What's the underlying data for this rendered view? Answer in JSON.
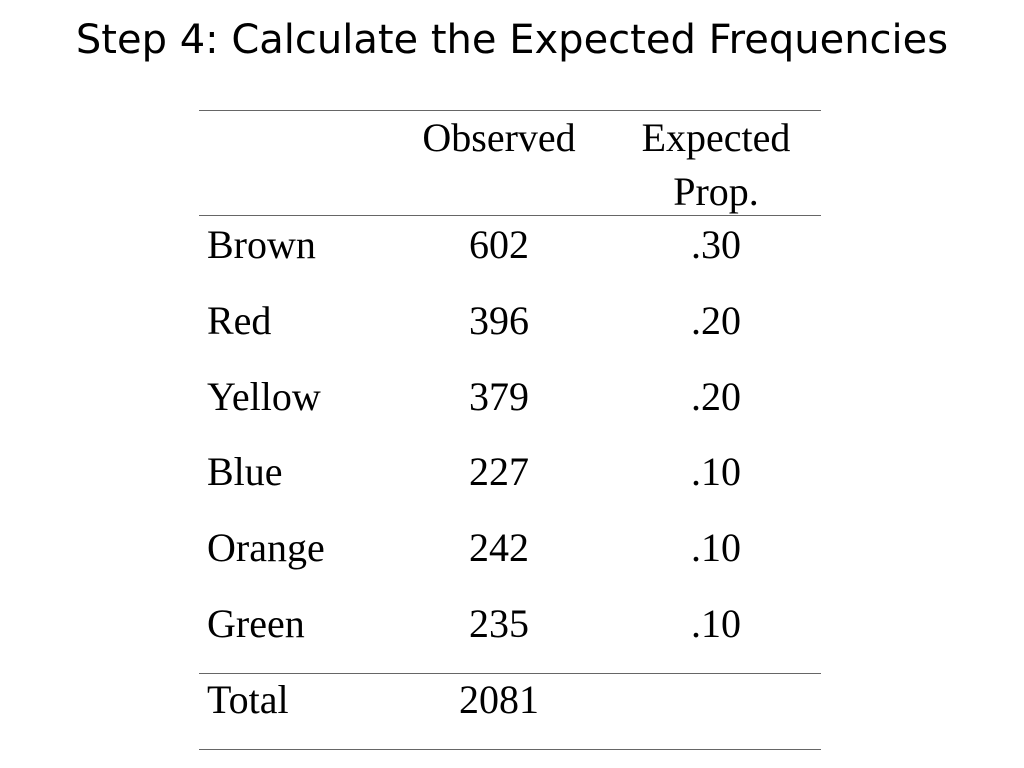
{
  "title": "Step 4: Calculate the Expected Frequencies",
  "table": {
    "header": [
      "Observed",
      "Expected Prop."
    ],
    "rows": [
      [
        "Brown",
        "602",
        ".30"
      ],
      [
        "Red",
        "396",
        ".20"
      ],
      [
        "Yellow",
        "379",
        ".20"
      ],
      [
        "Blue",
        "227",
        ".10"
      ],
      [
        "Orange",
        "242",
        ".10"
      ],
      [
        "Green",
        "235",
        ".10"
      ]
    ],
    "total": [
      "Total",
      "2081"
    ]
  }
}
